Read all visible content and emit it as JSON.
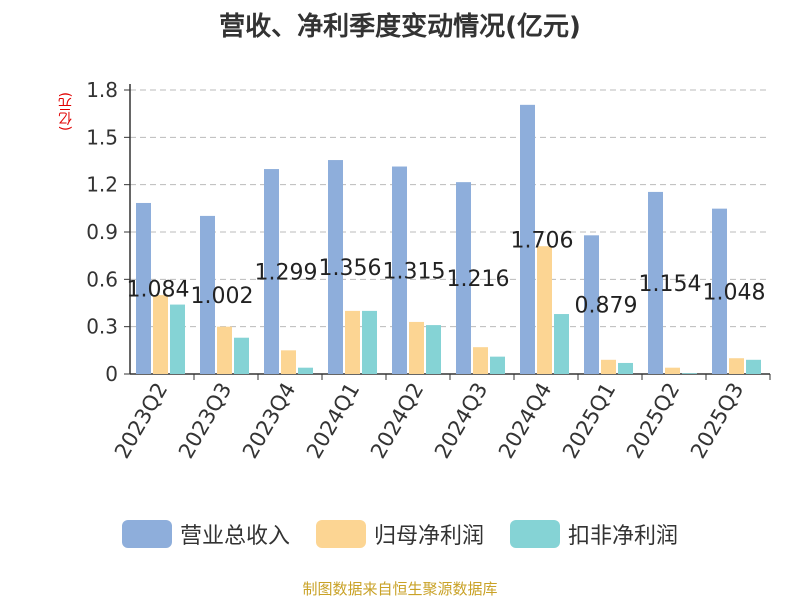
{
  "title": "营收、净利季度变动情况(亿元)",
  "source": "制图数据来自恒生聚源数据库",
  "colors": {
    "revenue": "#8eaedb",
    "parent": "#fcd593",
    "deducted": "#85d3d5",
    "axis": "#333333",
    "grid": "#bbbbbb"
  },
  "chart_data": {
    "type": "bar",
    "title": "营收、净利季度变动情况(亿元)",
    "ylabel": "(亿元)",
    "xlabel": "",
    "ylim": [
      0,
      1.8
    ],
    "yticks": [
      "0",
      "0.3",
      "0.6",
      "0.9",
      "1.2",
      "1.5",
      "1.8"
    ],
    "grid": true,
    "legend_position": "bottom",
    "categories": [
      "2023Q2",
      "2023Q3",
      "2023Q4",
      "2024Q1",
      "2024Q2",
      "2024Q3",
      "2024Q4",
      "2025Q1",
      "2025Q2",
      "2025Q3"
    ],
    "series": [
      {
        "name": "营业总收入",
        "color": "#8eaedb",
        "values": [
          1.084,
          1.002,
          1.299,
          1.356,
          1.315,
          1.216,
          1.706,
          0.879,
          1.154,
          1.048
        ],
        "labels": [
          "1.084",
          "1.002",
          "1.299",
          "1.356",
          "1.315",
          "1.216",
          "1.706",
          "0.879",
          "1.154",
          "1.048"
        ]
      },
      {
        "name": "归母净利润",
        "color": "#fcd593",
        "values": [
          0.5,
          0.3,
          0.15,
          0.4,
          0.33,
          0.17,
          0.81,
          0.09,
          0.04,
          0.1
        ]
      },
      {
        "name": "扣非净利润",
        "color": "#85d3d5",
        "values": [
          0.44,
          0.23,
          0.04,
          0.4,
          0.31,
          0.11,
          0.38,
          0.07,
          0.005,
          0.09
        ]
      }
    ]
  }
}
